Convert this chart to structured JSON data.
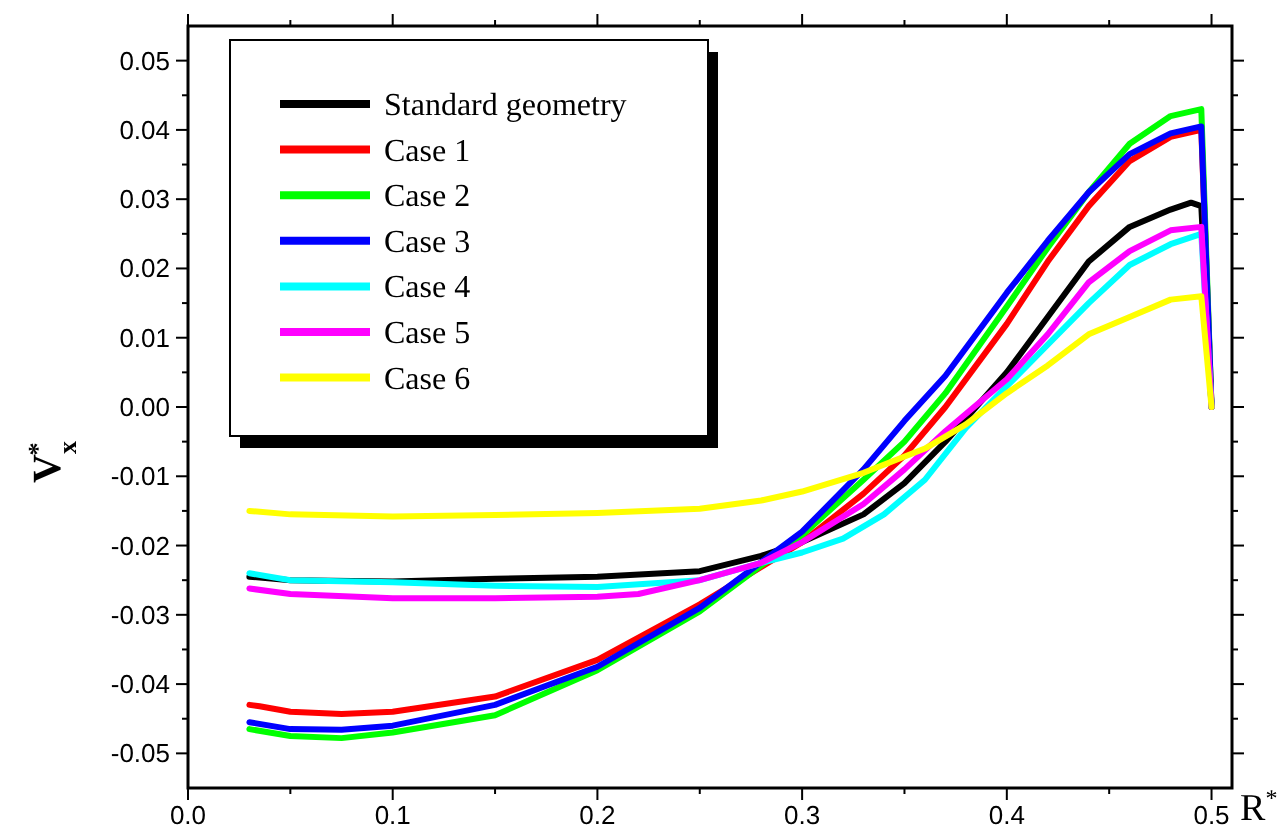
{
  "chart_data": {
    "type": "line",
    "xlabel": "R$^{*}$",
    "ylabel": "V$_{x}$$^{*}$",
    "xlim": [
      0,
      0.51
    ],
    "ylim": [
      -0.055,
      0.055
    ],
    "xticks": [
      {
        "value": 0,
        "label": "0.0"
      },
      {
        "value": 0.05,
        "label": null
      },
      0.1,
      {
        "value": 0.15,
        "label": null
      },
      0.2,
      {
        "value": 0.25,
        "label": null
      },
      0.3,
      {
        "value": 0.35,
        "label": null
      },
      0.4,
      {
        "value": 0.45,
        "label": null
      },
      0.5
    ],
    "yticks": [
      -0.05,
      {
        "value": -0.045,
        "label": null
      },
      -0.04,
      {
        "value": -0.035,
        "label": null
      },
      -0.03,
      {
        "value": -0.025,
        "label": null
      },
      -0.02,
      {
        "value": -0.015,
        "label": null
      },
      -0.01,
      {
        "value": -0.005,
        "label": null
      },
      {
        "value": 0,
        "label": "0.00"
      },
      {
        "value": 0.005,
        "label": null
      },
      0.01,
      {
        "value": 0.015,
        "label": null
      },
      0.02,
      {
        "value": 0.025,
        "label": null
      },
      0.03,
      {
        "value": 0.035,
        "label": null
      },
      0.04,
      {
        "value": 0.045,
        "label": null
      },
      0.05
    ],
    "grid": false,
    "legend": "top left",
    "marker": "none",
    "line_style": "solid",
    "series": [
      {
        "name": "Standard geometry",
        "color": "#000000",
        "x": [
          0.03,
          0.05,
          0.1,
          0.15,
          0.2,
          0.25,
          0.28,
          0.3,
          0.33,
          0.35,
          0.37,
          0.4,
          0.42,
          0.44,
          0.46,
          0.48,
          0.49,
          0.495,
          0.5
        ],
        "values": [
          -0.0245,
          -0.025,
          -0.0252,
          -0.0248,
          -0.0245,
          -0.0237,
          -0.0215,
          -0.0195,
          -0.0155,
          -0.011,
          -0.005,
          0.005,
          0.013,
          0.021,
          0.026,
          0.0285,
          0.0295,
          0.029,
          0.0
        ]
      },
      {
        "name": "Case 1",
        "color": "#ff0000",
        "x": [
          0.03,
          0.035,
          0.05,
          0.075,
          0.1,
          0.15,
          0.2,
          0.25,
          0.3,
          0.33,
          0.35,
          0.37,
          0.4,
          0.42,
          0.44,
          0.46,
          0.48,
          0.495,
          0.5
        ],
        "values": [
          -0.043,
          -0.0432,
          -0.044,
          -0.0443,
          -0.044,
          -0.0418,
          -0.0365,
          -0.0285,
          -0.0195,
          -0.0125,
          -0.007,
          0.0,
          0.012,
          0.021,
          0.029,
          0.0355,
          0.039,
          0.04,
          0.0
        ]
      },
      {
        "name": "Case 2",
        "color": "#00ff00",
        "x": [
          0.03,
          0.05,
          0.075,
          0.1,
          0.15,
          0.2,
          0.25,
          0.3,
          0.33,
          0.35,
          0.37,
          0.4,
          0.42,
          0.44,
          0.46,
          0.48,
          0.495,
          0.5
        ],
        "values": [
          -0.0465,
          -0.0475,
          -0.0478,
          -0.047,
          -0.0445,
          -0.038,
          -0.0295,
          -0.0185,
          -0.0105,
          -0.005,
          0.002,
          0.0145,
          0.023,
          0.031,
          0.038,
          0.042,
          0.043,
          0.0
        ]
      },
      {
        "name": "Case 3",
        "color": "#0000ff",
        "x": [
          0.03,
          0.05,
          0.075,
          0.1,
          0.15,
          0.2,
          0.25,
          0.3,
          0.33,
          0.35,
          0.37,
          0.4,
          0.42,
          0.44,
          0.46,
          0.48,
          0.495,
          0.5
        ],
        "values": [
          -0.0455,
          -0.0465,
          -0.0466,
          -0.046,
          -0.043,
          -0.0375,
          -0.029,
          -0.018,
          -0.009,
          -0.002,
          0.0045,
          0.0165,
          0.024,
          0.031,
          0.0365,
          0.0395,
          0.0405,
          0.0
        ]
      },
      {
        "name": "Case 4",
        "color": "#00ffff",
        "x": [
          0.03,
          0.05,
          0.1,
          0.15,
          0.2,
          0.25,
          0.28,
          0.3,
          0.32,
          0.34,
          0.36,
          0.38,
          0.4,
          0.42,
          0.44,
          0.46,
          0.48,
          0.495,
          0.5
        ],
        "values": [
          -0.024,
          -0.025,
          -0.0253,
          -0.0258,
          -0.026,
          -0.025,
          -0.0225,
          -0.021,
          -0.019,
          -0.0155,
          -0.0105,
          -0.003,
          0.003,
          0.009,
          0.015,
          0.0205,
          0.0235,
          0.025,
          0.0
        ]
      },
      {
        "name": "Case 5",
        "color": "#ff00ff",
        "x": [
          0.03,
          0.05,
          0.1,
          0.15,
          0.2,
          0.22,
          0.25,
          0.28,
          0.3,
          0.33,
          0.35,
          0.37,
          0.4,
          0.42,
          0.44,
          0.46,
          0.48,
          0.495,
          0.5
        ],
        "values": [
          -0.0262,
          -0.027,
          -0.0276,
          -0.0276,
          -0.0274,
          -0.027,
          -0.025,
          -0.0225,
          -0.0195,
          -0.014,
          -0.009,
          -0.0035,
          0.004,
          0.0105,
          0.018,
          0.0225,
          0.0255,
          0.026,
          0.0
        ]
      },
      {
        "name": "Case 6",
        "color": "#ffff00",
        "x": [
          0.03,
          0.05,
          0.1,
          0.15,
          0.2,
          0.25,
          0.28,
          0.3,
          0.33,
          0.36,
          0.38,
          0.4,
          0.42,
          0.44,
          0.46,
          0.48,
          0.495,
          0.5
        ],
        "values": [
          -0.015,
          -0.0155,
          -0.0158,
          -0.0156,
          -0.0153,
          -0.0147,
          -0.0135,
          -0.0122,
          -0.0095,
          -0.006,
          -0.0025,
          0.002,
          0.006,
          0.0105,
          0.013,
          0.0155,
          0.016,
          0.0
        ]
      }
    ]
  }
}
